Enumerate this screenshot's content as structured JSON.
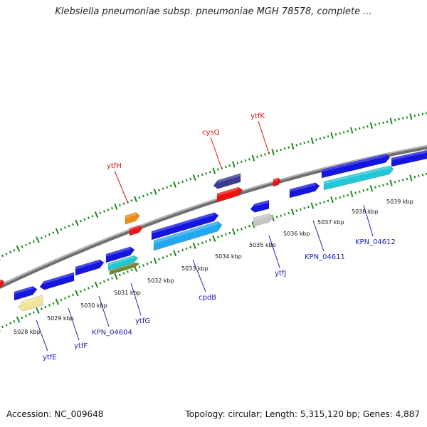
{
  "header": {
    "title": "Klebsiella pneumoniae subsp. pneumoniae MGH 78578, complete ..."
  },
  "footer": {
    "accession": "Accession: NC_009648",
    "summary": "Topology: circular; Length: 5,315,120 bp; Genes: 4,887"
  },
  "colors": {
    "backbone": "#8c8c8c",
    "ticks": "#1a8a1a",
    "top_labels": "#dd1111",
    "bottom_labels": "#1f1fb0",
    "blue_cds": "#1515e0",
    "cyan_cds": "#22c8d6",
    "light_blue_cds": "#22a8ee",
    "navy_cds": "#3b3b94",
    "red_cds": "#ee1111",
    "orange_cds": "#f08a10",
    "gray_cds": "#c6c6c6",
    "tan_cds": "#f0e498",
    "olive_cds": "#6f8a28"
  },
  "scale": {
    "labels": [
      "5028 kbp",
      "5029 kbp",
      "5030 kbp",
      "5031 kbp",
      "5032 kbp",
      "5033 kbp",
      "5034 kbp",
      "5035 kbp",
      "5036 kbp",
      "5037 kbp",
      "5038 kbp",
      "5039 kbp"
    ]
  },
  "gene_labels": {
    "top": [
      "ytfH",
      "cysQ",
      "ytfK"
    ],
    "bottom": [
      "ytfE",
      "ytfF",
      "KPN_04604",
      "ytfG",
      "cpdB",
      "ytfJ",
      "KPN_04611",
      "KPN_04612"
    ]
  },
  "features": [
    {
      "id": "cds-1",
      "color": "red_cds",
      "strand": "forward"
    },
    {
      "id": "cds-2",
      "color": "blue_cds",
      "strand": "forward"
    },
    {
      "id": "cds-3",
      "color": "tan_cds",
      "strand": "reverse"
    },
    {
      "id": "cds-4",
      "color": "blue_cds",
      "strand": "reverse"
    },
    {
      "id": "cds-5",
      "color": "blue_cds",
      "strand": "forward"
    },
    {
      "id": "cds-6",
      "color": "blue_cds",
      "strand": "forward"
    },
    {
      "id": "cds-7",
      "color": "cyan_cds",
      "strand": "forward"
    },
    {
      "id": "cds-8",
      "color": "olive_cds",
      "strand": "forward"
    },
    {
      "id": "cds-9",
      "color": "orange_cds",
      "strand": "forward"
    },
    {
      "id": "cds-10",
      "color": "red_cds",
      "strand": "forward"
    },
    {
      "id": "cds-11",
      "color": "blue_cds",
      "strand": "forward"
    },
    {
      "id": "cds-12",
      "color": "light_blue_cds",
      "strand": "forward"
    },
    {
      "id": "cds-13",
      "color": "navy_cds",
      "strand": "reverse"
    },
    {
      "id": "cds-14",
      "color": "red_cds",
      "strand": "forward"
    },
    {
      "id": "cds-15",
      "color": "red_cds",
      "strand": "forward"
    },
    {
      "id": "cds-16",
      "color": "blue_cds",
      "strand": "reverse"
    },
    {
      "id": "cds-17",
      "color": "gray_cds",
      "strand": "forward"
    },
    {
      "id": "cds-18",
      "color": "blue_cds",
      "strand": "forward"
    },
    {
      "id": "cds-19",
      "color": "blue_cds",
      "strand": "forward"
    },
    {
      "id": "cds-20",
      "color": "cyan_cds",
      "strand": "forward"
    },
    {
      "id": "cds-21",
      "color": "blue_cds",
      "strand": "forward"
    }
  ]
}
